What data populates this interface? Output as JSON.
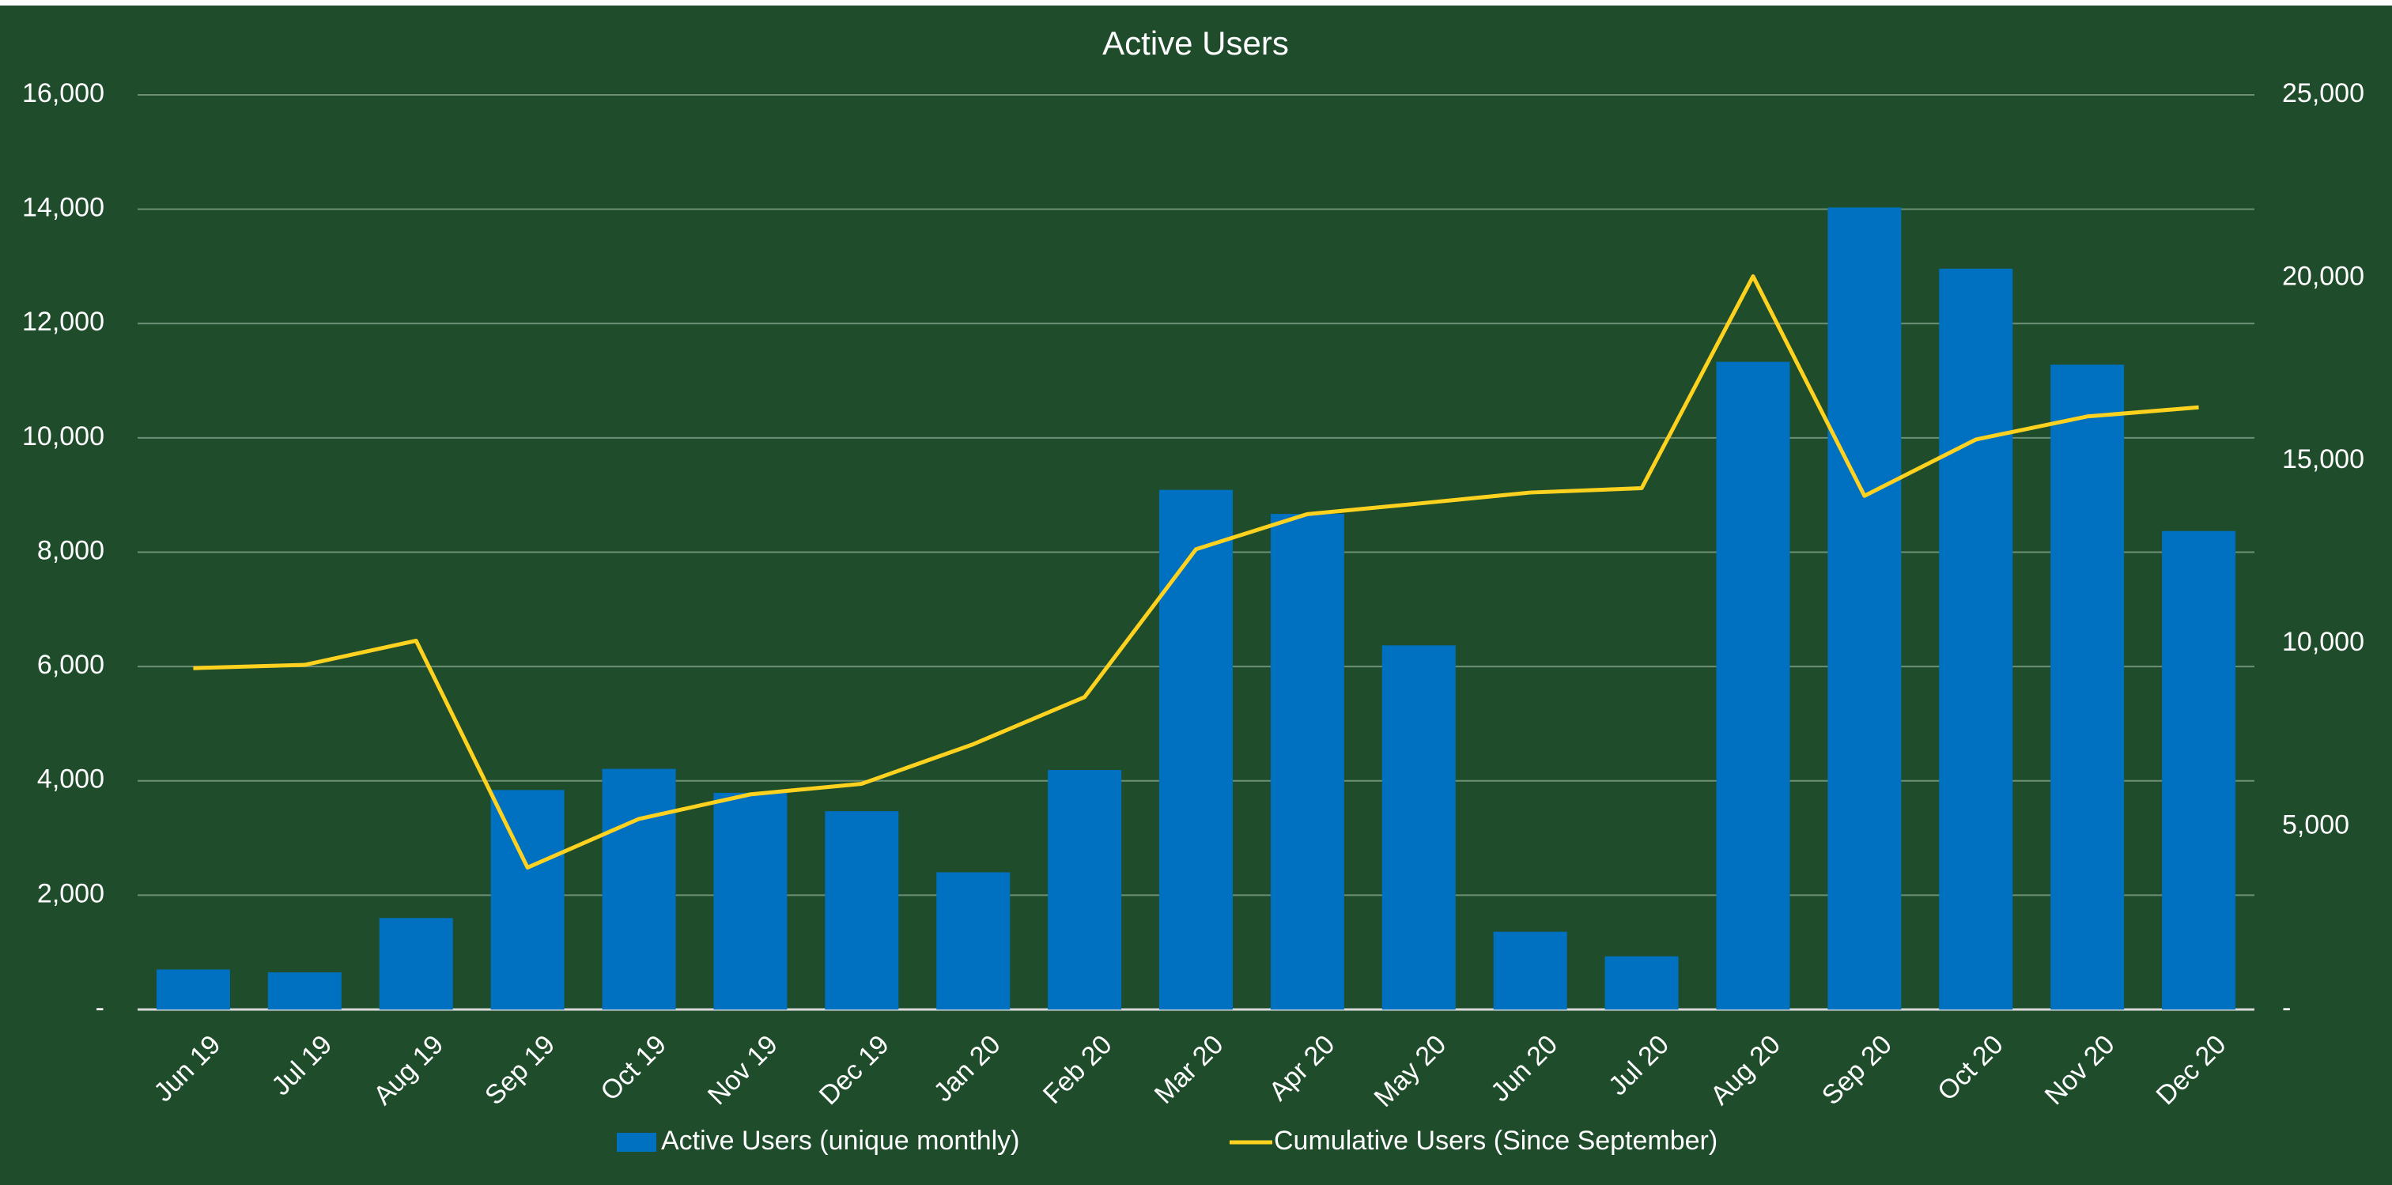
{
  "chart_data": {
    "type": "bar",
    "title": "Active Users",
    "categories": [
      "Jun 19",
      "Jul 19",
      "Aug 19",
      "Sep 19",
      "Oct 19",
      "Nov 19",
      "Dec 19",
      "Jan 20",
      "Feb 20",
      "Mar 20",
      "Apr 20",
      "May 20",
      "Jun 20",
      "Jul 20",
      "Aug 20",
      "Sep 20",
      "Oct 20",
      "Nov 20",
      "Dec 20"
    ],
    "series": [
      {
        "name": "Active Users (unique monthly)",
        "type": "bar",
        "color": "#0070c0",
        "values": [
          700,
          650,
          1600,
          3840,
          4210,
          3790,
          3470,
          2400,
          4190,
          9090,
          8670,
          6370,
          1360,
          930,
          11330,
          14030,
          12960,
          11280,
          8370
        ]
      },
      {
        "name": "Cumulative Users (Since September)",
        "type": "line",
        "axis": "y2",
        "color": "#ffd21f",
        "values": [
          9330,
          9420,
          10080,
          3880,
          5210,
          5880,
          6170,
          7250,
          8540,
          12580,
          13540,
          13830,
          14130,
          14250,
          20040,
          14040,
          15580,
          16210,
          16460
        ]
      }
    ],
    "ylim": [
      0,
      16000
    ],
    "yticks": [
      {
        "value": 0,
        "label": "-"
      },
      {
        "value": 2000,
        "label": "2,000"
      },
      {
        "value": 4000,
        "label": "4,000"
      },
      {
        "value": 6000,
        "label": "6,000"
      },
      {
        "value": 8000,
        "label": "8,000"
      },
      {
        "value": 10000,
        "label": "10,000"
      },
      {
        "value": 12000,
        "label": "12,000"
      },
      {
        "value": 14000,
        "label": "14,000"
      },
      {
        "value": 16000,
        "label": "16,000"
      }
    ],
    "y2lim": [
      0,
      25000
    ],
    "y2ticks": [
      {
        "value": 0,
        "label": "-"
      },
      {
        "value": 5000,
        "label": "5,000"
      },
      {
        "value": 10000,
        "label": "10,000"
      },
      {
        "value": 15000,
        "label": "15,000"
      },
      {
        "value": 20000,
        "label": "20,000"
      },
      {
        "value": 25000,
        "label": "25,000"
      }
    ],
    "grid": true,
    "legend": "bottom"
  }
}
